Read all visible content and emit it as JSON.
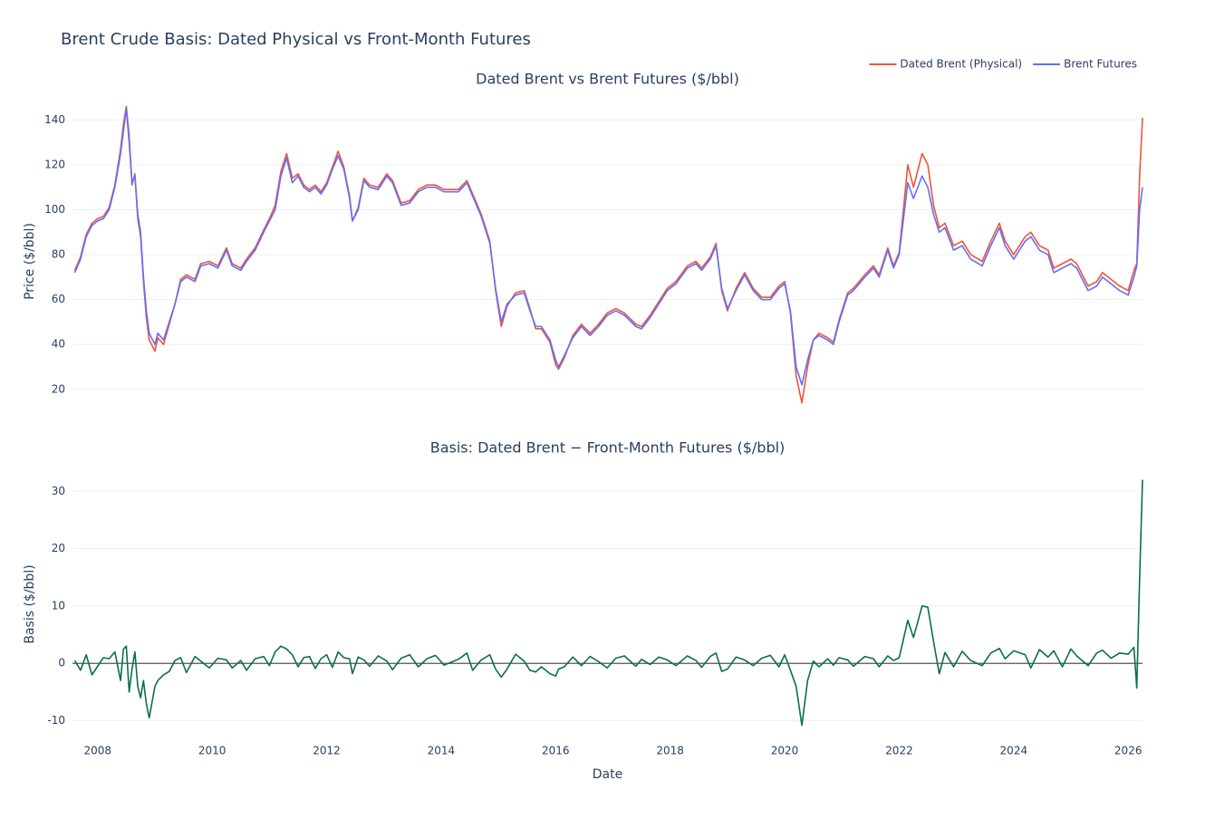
{
  "title": "Brent Crude Basis: Dated Physical vs Front-Month Futures",
  "chart_data": [
    {
      "type": "line",
      "title": "Dated Brent vs Brent Futures ($/bbl)",
      "y_label": "Price ($/bbl)",
      "legend": "top-right",
      "grid": true,
      "xlim": [
        2007.56,
        2026.25
      ],
      "ylim": [
        7,
        147
      ],
      "yticks": [
        20,
        40,
        60,
        80,
        100,
        120,
        140
      ],
      "x": [
        2007.6,
        2007.7,
        2007.8,
        2007.9,
        2008.0,
        2008.1,
        2008.2,
        2008.3,
        2008.4,
        2008.45,
        2008.5,
        2008.55,
        2008.6,
        2008.65,
        2008.7,
        2008.75,
        2008.8,
        2008.85,
        2008.9,
        2009.0,
        2009.05,
        2009.15,
        2009.25,
        2009.35,
        2009.45,
        2009.55,
        2009.7,
        2009.8,
        2009.95,
        2010.1,
        2010.25,
        2010.35,
        2010.5,
        2010.6,
        2010.75,
        2010.9,
        2011.0,
        2011.1,
        2011.2,
        2011.3,
        2011.4,
        2011.5,
        2011.6,
        2011.7,
        2011.8,
        2011.9,
        2012.0,
        2012.1,
        2012.2,
        2012.3,
        2012.4,
        2012.45,
        2012.55,
        2012.65,
        2012.75,
        2012.9,
        2013.05,
        2013.15,
        2013.3,
        2013.45,
        2013.6,
        2013.75,
        2013.9,
        2014.05,
        2014.3,
        2014.45,
        2014.55,
        2014.7,
        2014.85,
        2014.95,
        2015.05,
        2015.15,
        2015.3,
        2015.45,
        2015.55,
        2015.65,
        2015.75,
        2015.9,
        2016.0,
        2016.05,
        2016.15,
        2016.3,
        2016.45,
        2016.6,
        2016.75,
        2016.9,
        2017.05,
        2017.2,
        2017.4,
        2017.5,
        2017.65,
        2017.8,
        2017.95,
        2018.1,
        2018.3,
        2018.45,
        2018.55,
        2018.7,
        2018.8,
        2018.9,
        2019.0,
        2019.15,
        2019.3,
        2019.45,
        2019.6,
        2019.75,
        2019.9,
        2020.0,
        2020.1,
        2020.2,
        2020.3,
        2020.4,
        2020.5,
        2020.6,
        2020.75,
        2020.85,
        2020.95,
        2021.1,
        2021.2,
        2021.4,
        2021.55,
        2021.65,
        2021.8,
        2021.9,
        2022.0,
        2022.15,
        2022.25,
        2022.4,
        2022.5,
        2022.6,
        2022.7,
        2022.8,
        2022.95,
        2023.1,
        2023.25,
        2023.45,
        2023.6,
        2023.75,
        2023.85,
        2024.0,
        2024.2,
        2024.3,
        2024.45,
        2024.6,
        2024.7,
        2024.85,
        2025.0,
        2025.1,
        2025.3,
        2025.45,
        2025.55,
        2025.7,
        2025.85,
        2026.0,
        2026.1,
        2026.15,
        2026.2,
        2026.25
      ],
      "series": [
        {
          "name": "Dated Brent (Physical)",
          "color": "#EF553B",
          "values": [
            73,
            79,
            89,
            94,
            96,
            97,
            101,
            111,
            127,
            138,
            146,
            133,
            111,
            116,
            96,
            88,
            68,
            52,
            42,
            37,
            43,
            40,
            49,
            58,
            69,
            71,
            69,
            76,
            77,
            75,
            83,
            76,
            74,
            78,
            83,
            91,
            96,
            102,
            117,
            125,
            114,
            116,
            111,
            109,
            111,
            108,
            112,
            119,
            126,
            119,
            106,
            95,
            101,
            114,
            111,
            110,
            116,
            113,
            103,
            104,
            109,
            111,
            111,
            109,
            109,
            113,
            107,
            98,
            86,
            64,
            48,
            57,
            63,
            64,
            56,
            47,
            47,
            41,
            31,
            29,
            34,
            44,
            49,
            45,
            49,
            54,
            56,
            54,
            49,
            48,
            53,
            59,
            65,
            68,
            75,
            77,
            74,
            79,
            85,
            64,
            55,
            65,
            72,
            65,
            61,
            61,
            66,
            68,
            54,
            26,
            14,
            30,
            42,
            45,
            43,
            41,
            51,
            63,
            65,
            71,
            75,
            71,
            83,
            75,
            81,
            120,
            110,
            125,
            120,
            102,
            92,
            94,
            84,
            86,
            80,
            77,
            86,
            94,
            86,
            80,
            88,
            90,
            84,
            82,
            74,
            76,
            78,
            76,
            66,
            68,
            72,
            69,
            66,
            64,
            73,
            76,
            115,
            141
          ]
        },
        {
          "name": "Brent Futures",
          "color": "#636EFA",
          "values": [
            72,
            78,
            88,
            93,
            95,
            96,
            100,
            110,
            125,
            135,
            145,
            130,
            112,
            115,
            98,
            90,
            70,
            55,
            45,
            40,
            45,
            42,
            50,
            58,
            68,
            70,
            68,
            75,
            76,
            74,
            82,
            75,
            73,
            77,
            82,
            90,
            95,
            100,
            115,
            123,
            112,
            115,
            110,
            108,
            110,
            107,
            111,
            118,
            124,
            118,
            105,
            95,
            100,
            113,
            110,
            109,
            115,
            112,
            102,
            103,
            108,
            110,
            110,
            108,
            108,
            112,
            106,
            97,
            85,
            65,
            50,
            58,
            62,
            63,
            55,
            48,
            48,
            42,
            33,
            30,
            35,
            43,
            48,
            44,
            48,
            53,
            55,
            53,
            48,
            47,
            52,
            58,
            64,
            67,
            74,
            76,
            73,
            78,
            84,
            65,
            56,
            64,
            71,
            64,
            60,
            60,
            65,
            67,
            55,
            30,
            22,
            33,
            42,
            44,
            42,
            40,
            50,
            62,
            64,
            70,
            74,
            70,
            82,
            74,
            80,
            112,
            105,
            115,
            110,
            98,
            90,
            92,
            82,
            84,
            78,
            75,
            84,
            92,
            84,
            78,
            86,
            88,
            82,
            80,
            72,
            74,
            76,
            74,
            64,
            66,
            70,
            67,
            64,
            62,
            70,
            75,
            100,
            110
          ]
        }
      ]
    },
    {
      "type": "line",
      "title": "Basis: Dated Brent − Front-Month Futures ($/bbl)",
      "y_label": "Basis ($/bbl)",
      "x_label": "Date",
      "grid": true,
      "color": "#0b6e4f",
      "xlim": [
        2007.56,
        2026.25
      ],
      "xticks": [
        2008,
        2010,
        2012,
        2014,
        2016,
        2018,
        2020,
        2022,
        2024,
        2026
      ],
      "ylim": [
        -12.6,
        33.2
      ],
      "yticks": [
        -10,
        0,
        10,
        20,
        30
      ],
      "x": [
        2007.6,
        2007.7,
        2007.8,
        2007.9,
        2008.0,
        2008.1,
        2008.2,
        2008.3,
        2008.4,
        2008.45,
        2008.5,
        2008.55,
        2008.6,
        2008.65,
        2008.7,
        2008.75,
        2008.8,
        2008.85,
        2008.9,
        2009.0,
        2009.05,
        2009.15,
        2009.25,
        2009.35,
        2009.45,
        2009.55,
        2009.7,
        2009.8,
        2009.95,
        2010.1,
        2010.25,
        2010.35,
        2010.5,
        2010.6,
        2010.75,
        2010.9,
        2011.0,
        2011.1,
        2011.2,
        2011.3,
        2011.4,
        2011.5,
        2011.6,
        2011.7,
        2011.8,
        2011.9,
        2012.0,
        2012.1,
        2012.2,
        2012.3,
        2012.4,
        2012.45,
        2012.55,
        2012.65,
        2012.75,
        2012.9,
        2013.05,
        2013.15,
        2013.3,
        2013.45,
        2013.6,
        2013.75,
        2013.9,
        2014.05,
        2014.3,
        2014.45,
        2014.55,
        2014.7,
        2014.85,
        2014.95,
        2015.05,
        2015.15,
        2015.3,
        2015.45,
        2015.55,
        2015.65,
        2015.75,
        2015.9,
        2016.0,
        2016.05,
        2016.15,
        2016.3,
        2016.45,
        2016.6,
        2016.75,
        2016.9,
        2017.05,
        2017.2,
        2017.4,
        2017.5,
        2017.65,
        2017.8,
        2017.95,
        2018.1,
        2018.3,
        2018.45,
        2018.55,
        2018.7,
        2018.8,
        2018.9,
        2019.0,
        2019.15,
        2019.3,
        2019.45,
        2019.6,
        2019.75,
        2019.9,
        2020.0,
        2020.1,
        2020.2,
        2020.3,
        2020.4,
        2020.5,
        2020.6,
        2020.75,
        2020.85,
        2020.95,
        2021.1,
        2021.2,
        2021.4,
        2021.55,
        2021.65,
        2021.8,
        2021.9,
        2022.0,
        2022.15,
        2022.25,
        2022.4,
        2022.5,
        2022.6,
        2022.7,
        2022.8,
        2022.95,
        2023.1,
        2023.25,
        2023.45,
        2023.6,
        2023.75,
        2023.85,
        2024.0,
        2024.2,
        2024.3,
        2024.45,
        2024.6,
        2024.7,
        2024.85,
        2025.0,
        2025.1,
        2025.3,
        2025.45,
        2025.55,
        2025.7,
        2025.85,
        2026.0,
        2026.1,
        2026.15,
        2026.2,
        2026.25
      ],
      "values": [
        0.5,
        -1.2,
        1.5,
        -2,
        -0.5,
        1,
        0.8,
        2,
        -3,
        2.5,
        3,
        -5,
        -1,
        2,
        -4,
        -6,
        -3,
        -7,
        -9.5,
        -4,
        -3,
        -2,
        -1.4,
        0.5,
        1,
        -1.6,
        1.2,
        0.4,
        -0.8,
        0.9,
        0.6,
        -0.8,
        0.5,
        -1.2,
        0.8,
        1.2,
        -0.4,
        2,
        3,
        2.5,
        1.5,
        -0.6,
        1,
        1.2,
        -0.9,
        0.8,
        1.5,
        -0.7,
        2,
        1,
        0.8,
        -1.8,
        1.1,
        0.6,
        -0.5,
        1.3,
        0.4,
        -1.1,
        0.9,
        1.5,
        -0.6,
        0.8,
        1.4,
        -0.3,
        0.7,
        1.8,
        -1.2,
        0.6,
        1.5,
        -1,
        -2.4,
        -1,
        1.6,
        0.4,
        -1.2,
        -1.5,
        -0.6,
        -1.8,
        -2.2,
        -1,
        -0.6,
        1.1,
        -0.4,
        1.2,
        0.3,
        -0.8,
        0.9,
        1.3,
        -0.5,
        0.7,
        -0.2,
        1.1,
        0.6,
        -0.4,
        1.3,
        0.5,
        -0.7,
        1.2,
        1.8,
        -1.4,
        -1,
        1.1,
        0.6,
        -0.4,
        0.9,
        1.4,
        -0.6,
        1.5,
        -1.2,
        -4,
        -10.8,
        -3,
        0.4,
        -0.6,
        0.8,
        -0.3,
        1,
        0.6,
        -0.5,
        1.2,
        0.8,
        -0.6,
        1.3,
        0.5,
        1,
        7.5,
        4.5,
        10,
        9.8,
        3.8,
        -1.8,
        1.9,
        -0.6,
        2.1,
        0.5,
        -0.4,
        1.8,
        2.6,
        0.8,
        2.2,
        1.5,
        -0.8,
        2.4,
        1.1,
        2.2,
        -0.6,
        2.5,
        1.3,
        -0.4,
        1.8,
        2.3,
        0.9,
        1.8,
        1.6,
        2.8,
        -4.3,
        15,
        32
      ]
    }
  ]
}
